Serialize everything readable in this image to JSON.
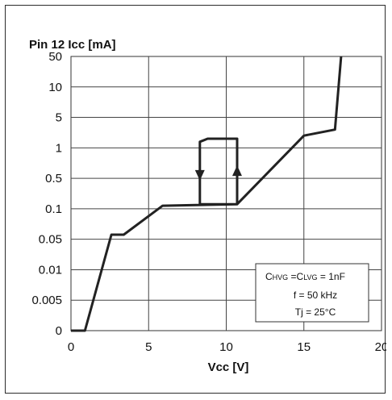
{
  "chart_data": {
    "type": "line",
    "ylabel": "Pin 12 Icc [mA]",
    "xlabel": "Vcc [V]",
    "x_ticks": [
      "0",
      "5",
      "10",
      "15",
      "20"
    ],
    "xlim": [
      0,
      20
    ],
    "y_ticks": [
      "0",
      "0.005",
      "0.01",
      "0.05",
      "0.1",
      "0.5",
      "1",
      "5",
      "10",
      "50"
    ],
    "y_scale": "category (non-uniform log-like)",
    "grid": true,
    "series": [
      {
        "x": [
          0,
          0.9,
          2.6,
          3.4,
          5.9,
          10.7,
          10.7,
          8.8,
          8.3,
          8.3,
          10.7,
          15.0,
          17.0,
          17.4
        ],
        "y_level": [
          0,
          0,
          3.15,
          3.15,
          4.1,
          4.15,
          6.3,
          6.3,
          6.2,
          4.15,
          4.15,
          6.4,
          6.6,
          9.0
        ]
      }
    ],
    "arrows": [
      {
        "direction": "down",
        "x": 8.3,
        "y_level": 5.1
      },
      {
        "direction": "up",
        "x": 10.7,
        "y_level": 5.25
      }
    ],
    "legend": {
      "line1_main1": "C",
      "line1_sub1": "HVG",
      "line1_mid": " =C",
      "line1_sub2": "LVG",
      "line1_end": " = 1nF",
      "line2": "f = 50 kHz",
      "line3": "Tj = 25°C"
    }
  }
}
